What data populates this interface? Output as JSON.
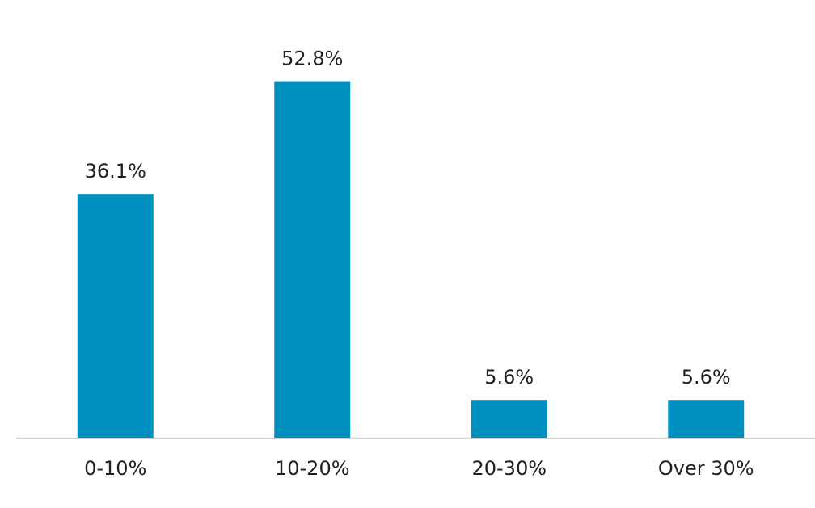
{
  "chart_data": {
    "type": "bar",
    "categories": [
      "0-10%",
      "10-20%",
      "20-30%",
      "Over 30%"
    ],
    "values": [
      36.1,
      52.8,
      5.6,
      5.6
    ],
    "value_labels": [
      "36.1%",
      "52.8%",
      "5.6%",
      "5.6%"
    ],
    "color": "#0090bf"
  }
}
